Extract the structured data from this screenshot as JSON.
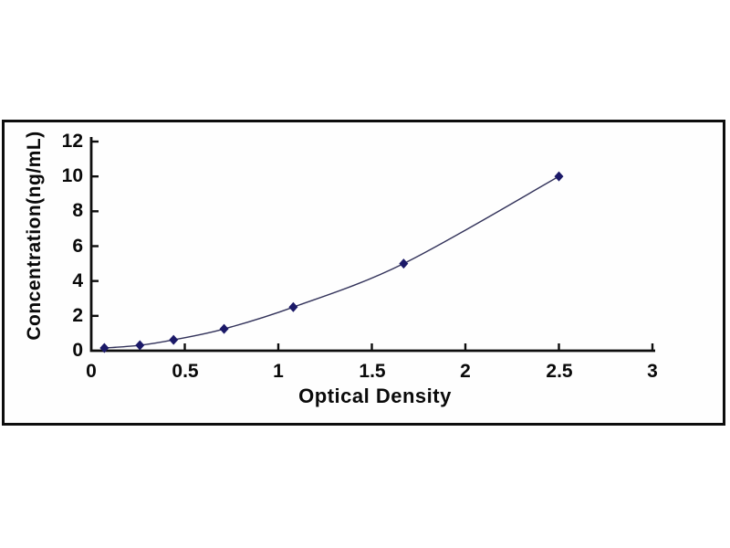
{
  "chart_data": {
    "type": "line",
    "subtype": "standard-curve-with-diamond-markers",
    "title": "",
    "xlabel": "Optical Density",
    "ylabel": "Concentration(ng/mL)",
    "x": [
      0.07,
      0.26,
      0.44,
      0.71,
      1.08,
      1.67,
      2.5
    ],
    "y": [
      0.156,
      0.312,
      0.625,
      1.25,
      2.5,
      5.0,
      10.0
    ],
    "xlim": [
      0,
      3
    ],
    "ylim": [
      0,
      12
    ],
    "x_ticks": [
      {
        "value": 0,
        "label": "0"
      },
      {
        "value": 0.5,
        "label": "0.5"
      },
      {
        "value": 1,
        "label": "1"
      },
      {
        "value": 1.5,
        "label": "1.5"
      },
      {
        "value": 2,
        "label": "2"
      },
      {
        "value": 2.5,
        "label": "2.5"
      },
      {
        "value": 3,
        "label": "3"
      }
    ],
    "y_ticks": [
      {
        "value": 0,
        "label": "0"
      },
      {
        "value": 2,
        "label": "2"
      },
      {
        "value": 4,
        "label": "4"
      },
      {
        "value": 6,
        "label": "6"
      },
      {
        "value": 8,
        "label": "8"
      },
      {
        "value": 10,
        "label": "10"
      },
      {
        "value": 12,
        "label": "12"
      }
    ],
    "grid": false,
    "legend": "none",
    "marker": "diamond",
    "colors": {
      "line": "#32325a",
      "marker": "#1b1968",
      "axis": "#0d0d0d",
      "frame": "#0d0d0d",
      "text": "#0a0a0a",
      "background": "#ffffff"
    }
  }
}
